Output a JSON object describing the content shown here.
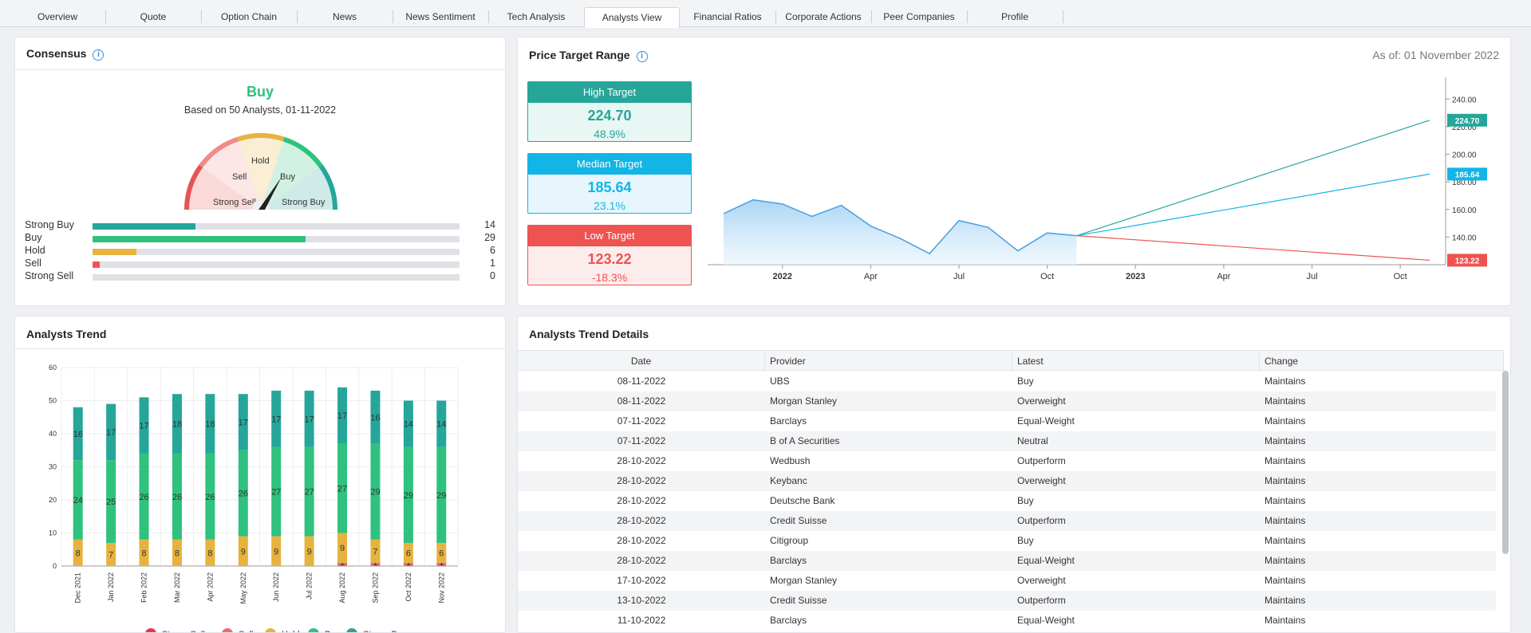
{
  "tabs": [
    {
      "label": "Overview"
    },
    {
      "label": "Quote"
    },
    {
      "label": "Option Chain"
    },
    {
      "label": "News"
    },
    {
      "label": "News Sentiment"
    },
    {
      "label": "Tech Analysis"
    },
    {
      "label": "Analysts View",
      "active": true
    },
    {
      "label": "Financial Ratios"
    },
    {
      "label": "Corporate Actions"
    },
    {
      "label": "Peer Companies"
    },
    {
      "label": "Profile"
    }
  ],
  "consensus": {
    "title": "Consensus",
    "verdict": "Buy",
    "subtitle": "Based on 50 Analysts, 01-11-2022",
    "gauge_labels": {
      "strong_sell": "Strong Sell",
      "sell": "Sell",
      "hold": "Hold",
      "buy": "Buy",
      "strong_buy": "Strong Buy"
    },
    "ratings": [
      {
        "label": "Strong Buy",
        "count": 14,
        "color": "#26a69a"
      },
      {
        "label": "Buy",
        "count": 29,
        "color": "#2ec27e"
      },
      {
        "label": "Hold",
        "count": 6,
        "color": "#e6b33f"
      },
      {
        "label": "Sell",
        "count": 1,
        "color": "#ef5350"
      },
      {
        "label": "Strong Sell",
        "count": 0,
        "color": "#d32f2f"
      }
    ],
    "total": 50
  },
  "price_target": {
    "title": "Price Target Range",
    "as_of": "As of: 01 November 2022",
    "high": {
      "label": "High Target",
      "value": "224.70",
      "pct": "48.9%",
      "color": "#26a69a",
      "bg": "#e8f6f4"
    },
    "median": {
      "label": "Median Target",
      "value": "185.64",
      "pct": "23.1%",
      "color": "#12b5e5",
      "bg": "#e6f6fc"
    },
    "low": {
      "label": "Low Target",
      "value": "123.22",
      "pct": "-18.3%",
      "color": "#ef5350",
      "bg": "#fdecec"
    }
  },
  "chart_data": [
    {
      "type": "area",
      "name": "price-target-range",
      "x_ticks": [
        {
          "label": "2022",
          "bold": true
        },
        {
          "label": "Apr"
        },
        {
          "label": "Jul"
        },
        {
          "label": "Oct"
        },
        {
          "label": "2023",
          "bold": true
        },
        {
          "label": "Apr"
        },
        {
          "label": "Jul"
        },
        {
          "label": "Oct"
        }
      ],
      "y_ticks": [
        140,
        160,
        180,
        200,
        220,
        240
      ],
      "y_tick_labels": [
        "140.00",
        "160.00",
        "180.00",
        "200.00",
        "220.00",
        "240.00"
      ],
      "ylim": [
        120,
        250
      ],
      "history": [
        {
          "x": "2021-11",
          "y": 157
        },
        {
          "x": "2021-12",
          "y": 167
        },
        {
          "x": "2022-01",
          "y": 164
        },
        {
          "x": "2022-02",
          "y": 155
        },
        {
          "x": "2022-03",
          "y": 163
        },
        {
          "x": "2022-04",
          "y": 148
        },
        {
          "x": "2022-05",
          "y": 139
        },
        {
          "x": "2022-06",
          "y": 128
        },
        {
          "x": "2022-07",
          "y": 152
        },
        {
          "x": "2022-08",
          "y": 147
        },
        {
          "x": "2022-09",
          "y": 130
        },
        {
          "x": "2022-10",
          "y": 143
        },
        {
          "x": "2022-11",
          "y": 141
        }
      ],
      "projections": [
        {
          "name": "High",
          "start": {
            "x": "2022-11",
            "y": 141
          },
          "end": {
            "x": "2023-11",
            "y": 224.7
          },
          "color": "#26a69a",
          "label": "224.70"
        },
        {
          "name": "Median",
          "start": {
            "x": "2022-11",
            "y": 141
          },
          "end": {
            "x": "2023-11",
            "y": 185.64
          },
          "color": "#12b5e5",
          "label": "185.64"
        },
        {
          "name": "Low",
          "start": {
            "x": "2022-11",
            "y": 141
          },
          "end": {
            "x": "2023-11",
            "y": 123.22
          },
          "color": "#ef5350",
          "label": "123.22"
        }
      ]
    },
    {
      "type": "bar",
      "name": "analysts-trend",
      "stacked": true,
      "categories": [
        "Dec 2021",
        "Jan 2022",
        "Feb 2022",
        "Mar 2022",
        "Apr 2022",
        "May 2022",
        "Jun 2022",
        "Jul 2022",
        "Aug 2022",
        "Sep 2022",
        "Oct 2022",
        "Nov 2022"
      ],
      "ylim": [
        0,
        60
      ],
      "y_ticks": [
        0,
        10,
        20,
        30,
        40,
        50,
        60
      ],
      "series": [
        {
          "name": "Strong Sell",
          "color": "#e53946",
          "values": [
            0,
            0,
            0,
            0,
            0,
            0,
            0,
            0,
            0,
            0,
            0,
            0
          ]
        },
        {
          "name": "Sell",
          "color": "#ef6b6b",
          "values": [
            0,
            0,
            0,
            0,
            0,
            0,
            0,
            0,
            1,
            1,
            1,
            1
          ]
        },
        {
          "name": "Hold",
          "color": "#e6b33f",
          "values": [
            8,
            7,
            8,
            8,
            8,
            9,
            9,
            9,
            9,
            7,
            6,
            6
          ]
        },
        {
          "name": "Buy",
          "color": "#2ec27e",
          "values": [
            24,
            25,
            26,
            26,
            26,
            26,
            27,
            27,
            27,
            29,
            29,
            29
          ]
        },
        {
          "name": "Strong Buy",
          "color": "#26a69a",
          "values": [
            16,
            17,
            17,
            18,
            18,
            17,
            17,
            17,
            17,
            16,
            14,
            14
          ]
        }
      ],
      "legend": "bottom"
    }
  ],
  "analysts_trend": {
    "title": "Analysts Trend"
  },
  "trend_details": {
    "title": "Analysts Trend Details",
    "columns": [
      "Date",
      "Provider",
      "Latest",
      "Change"
    ],
    "rows": [
      [
        "08-11-2022",
        "UBS",
        "Buy",
        "Maintains"
      ],
      [
        "08-11-2022",
        "Morgan Stanley",
        "Overweight",
        "Maintains"
      ],
      [
        "07-11-2022",
        "Barclays",
        "Equal-Weight",
        "Maintains"
      ],
      [
        "07-11-2022",
        "B of A Securities",
        "Neutral",
        "Maintains"
      ],
      [
        "28-10-2022",
        "Wedbush",
        "Outperform",
        "Maintains"
      ],
      [
        "28-10-2022",
        "Keybanc",
        "Overweight",
        "Maintains"
      ],
      [
        "28-10-2022",
        "Deutsche Bank",
        "Buy",
        "Maintains"
      ],
      [
        "28-10-2022",
        "Credit Suisse",
        "Outperform",
        "Maintains"
      ],
      [
        "28-10-2022",
        "Citigroup",
        "Buy",
        "Maintains"
      ],
      [
        "28-10-2022",
        "Barclays",
        "Equal-Weight",
        "Maintains"
      ],
      [
        "17-10-2022",
        "Morgan Stanley",
        "Overweight",
        "Maintains"
      ],
      [
        "13-10-2022",
        "Credit Suisse",
        "Outperform",
        "Maintains"
      ],
      [
        "11-10-2022",
        "Barclays",
        "Equal-Weight",
        "Maintains"
      ]
    ]
  }
}
